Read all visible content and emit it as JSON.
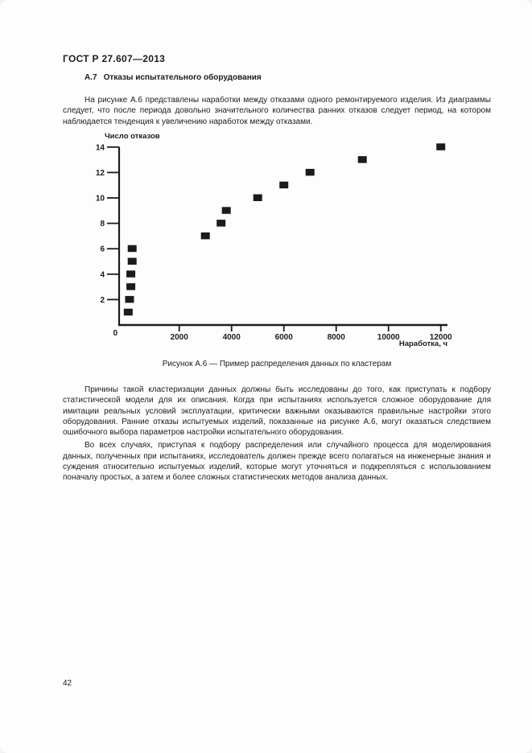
{
  "document": {
    "header": "ГОСТ Р 27.607—2013",
    "page_number": "42"
  },
  "section": {
    "number": "А.7",
    "title": "Отказы испытательного оборудования",
    "paragraphs": [
      "На рисунке А.6 представлены наработки между отказами одного ремонтируемого изделия. Из диаграммы следует, что после периода довольно значительного количества ранних отказов следует период, на котором наблюдается тенденция к увеличению наработок между отказами.",
      "Причины такой кластеризации данных должны быть исследованы до того, как приступать к подбору статистической модели для их описания. Когда при испытаниях используется сложное оборудование для имитации реальных условий эксплуатации, критически важными оказываются правильные настройки этого оборудования. Ранние отказы испытуемых изделий, показанные на рисунке А.6, могут оказаться следствием ошибочного выбора параметров настройки испытательного оборудования.",
      "Во всех случаях, приступая к подбору распределения или случайного процесса для моделирования данных, полученных при испытаниях, исследователь должен прежде всего полагаться на инженерные знания и суждения относительно испытуемых изделий, которые могут уточняться и подкрепляться с использованием поначалу простых, а затем и более сложных статистических методов анализа данных."
    ]
  },
  "figure": {
    "caption": "Рисунок А.6 — Пример распределения данных по кластерам"
  },
  "chart_data": {
    "type": "scatter",
    "title": "",
    "xlabel": "Наработка, ч",
    "ylabel": "Число отказов",
    "xlim": [
      0,
      12400
    ],
    "ylim": [
      0,
      14
    ],
    "x_ticks": [
      0,
      2000,
      4000,
      6000,
      8000,
      10000,
      12000
    ],
    "y_ticks": [
      0,
      2,
      4,
      6,
      8,
      10,
      12,
      14
    ],
    "grid": false,
    "legend": null,
    "marker": "square",
    "marker_color": "#1b1b1b",
    "axis_color": "#1b1b1b",
    "points": [
      [
        50,
        1
      ],
      [
        100,
        2
      ],
      [
        150,
        3
      ],
      [
        150,
        4
      ],
      [
        200,
        5
      ],
      [
        200,
        6
      ],
      [
        3000,
        7
      ],
      [
        3600,
        8
      ],
      [
        3800,
        9
      ],
      [
        5000,
        10
      ],
      [
        6000,
        11
      ],
      [
        7000,
        12
      ],
      [
        9000,
        13
      ],
      [
        12000,
        14
      ]
    ]
  }
}
